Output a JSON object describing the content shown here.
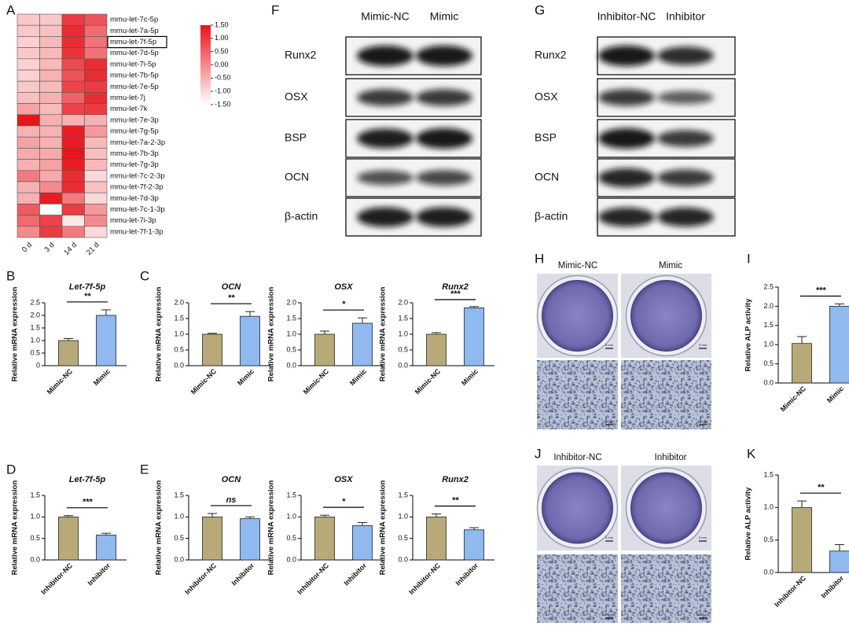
{
  "chart_data": [
    {
      "type": "heatmap",
      "panel": "A",
      "rows": [
        "mmu-let-7c-5p",
        "mmu-let-7a-5p",
        "mmu-let-7f-5p",
        "mmu-let-7d-5p",
        "mmu-let-7i-5p",
        "mmu-let-7b-5p",
        "mmu-let-7e-5p",
        "mmu-let-7j",
        "mmu-let-7k",
        "mmu-let-7e-3p",
        "mmu-let-7g-5p",
        "mmu-let-7a-2-3p",
        "mmu-let-7b-3p",
        "mmu-let-7g-3p",
        "mmu-let-7c-2-3p",
        "mmu-let-7f-2-3p",
        "mmu-let-7d-3p",
        "mmu-let-7c-1-3p",
        "mmu-let-7i-3p",
        "mmu-let-7f-1-3p"
      ],
      "columns": [
        "0 d",
        "3 d",
        "14 d",
        "21 d"
      ],
      "values": [
        [
          -0.8,
          -0.8,
          1.0,
          0.7
        ],
        [
          -0.8,
          -0.7,
          1.2,
          0.4
        ],
        [
          -0.9,
          -0.6,
          1.2,
          0.3
        ],
        [
          -0.8,
          -0.6,
          1.1,
          0.3
        ],
        [
          -0.9,
          -0.6,
          0.8,
          1.2
        ],
        [
          -0.9,
          -0.5,
          0.7,
          1.2
        ],
        [
          -0.8,
          -0.6,
          0.9,
          1.0
        ],
        [
          -0.7,
          -0.5,
          0.5,
          1.2
        ],
        [
          -0.3,
          -0.6,
          0.9,
          1.0
        ],
        [
          1.5,
          -0.5,
          -0.5,
          -0.5
        ],
        [
          -0.5,
          -0.5,
          1.4,
          -0.2
        ],
        [
          -0.3,
          -0.5,
          1.4,
          -0.6
        ],
        [
          -0.4,
          -0.4,
          1.5,
          -0.7
        ],
        [
          -0.5,
          -0.3,
          1.4,
          -0.6
        ],
        [
          0.2,
          -0.4,
          1.2,
          -1.0
        ],
        [
          -0.5,
          0.0,
          1.2,
          -0.7
        ],
        [
          -0.5,
          1.4,
          0.2,
          -1.0
        ],
        [
          0.6,
          -1.5,
          1.0,
          -0.2
        ],
        [
          0.4,
          0.9,
          -1.2,
          0.0
        ],
        [
          0.0,
          1.0,
          0.2,
          -1.0
        ]
      ],
      "boxed_rows": [
        2
      ],
      "colorbar": {
        "lim": [
          -1.5,
          1.5
        ],
        "colors": [
          "#ffffff",
          "#e8141c"
        ],
        "ticks": [
          {
            "value": 1.5,
            "label": "1.50"
          },
          {
            "value": 1,
            "label": "1.00"
          },
          {
            "value": 0.5,
            "label": "0.50"
          },
          {
            "value": 0,
            "label": "0.00"
          },
          {
            "value": -0.5,
            "label": "-0.50"
          },
          {
            "value": -1,
            "label": "-1.00"
          },
          {
            "value": -1.5,
            "label": "-1.50"
          }
        ]
      }
    },
    {
      "type": "bar",
      "panel": "B",
      "title": "Let-7f-5p",
      "y_label": "Relative mRNA expression",
      "categories": [
        "Mimic-NC",
        "Mimic"
      ],
      "values": [
        1.0,
        2.0
      ],
      "errors": [
        0.08,
        0.22
      ],
      "colors": [
        "#b8aa78",
        "#8fb9ef"
      ],
      "ylim": [
        0,
        2.5
      ],
      "yticks": [
        0,
        0.5,
        {
          "value": 1,
          "label": "1.0"
        },
        1.5,
        {
          "value": 2,
          "label": "2.0"
        },
        2.5
      ],
      "significance": "**"
    },
    {
      "type": "bar",
      "panel": "C",
      "title": "OCN",
      "y_label": "Relative mRNA expression",
      "categories": [
        "Mimic-NC",
        "Mimic"
      ],
      "values": [
        1.0,
        1.57
      ],
      "errors": [
        0.03,
        0.15
      ],
      "colors": [
        "#b8aa78",
        "#8fb9ef"
      ],
      "ylim": [
        0,
        2
      ],
      "yticks": [
        {
          "value": 0,
          "label": "0.0"
        },
        0.5,
        {
          "value": 1,
          "label": "1.0"
        },
        1.5,
        {
          "value": 2,
          "label": "2.0"
        }
      ],
      "significance": "**"
    },
    {
      "type": "bar",
      "title": "OSX",
      "y_label": "Relative mRNA expression",
      "categories": [
        "Mimic-NC",
        "Mimic"
      ],
      "values": [
        1.0,
        1.35
      ],
      "errors": [
        0.1,
        0.17
      ],
      "colors": [
        "#b8aa78",
        "#8fb9ef"
      ],
      "ylim": [
        0,
        2
      ],
      "yticks": [
        {
          "value": 0,
          "label": "0.0"
        },
        0.5,
        {
          "value": 1,
          "label": "1.0"
        },
        1.5,
        {
          "value": 2,
          "label": "2.0"
        }
      ],
      "significance": "*"
    },
    {
      "type": "bar",
      "title": "Runx2",
      "y_label": "Relative mRNA expression",
      "categories": [
        "Mimic-NC",
        "Mimic"
      ],
      "values": [
        1.0,
        1.84
      ],
      "errors": [
        0.05,
        0.04
      ],
      "colors": [
        "#b8aa78",
        "#8fb9ef"
      ],
      "ylim": [
        0,
        2
      ],
      "yticks": [
        {
          "value": 0,
          "label": "0.0"
        },
        0.5,
        {
          "value": 1,
          "label": "1.0"
        },
        1.5,
        {
          "value": 2,
          "label": "2.0"
        }
      ],
      "significance": "***"
    },
    {
      "type": "bar",
      "panel": "D",
      "title": "Let-7f-5p",
      "y_label": "Relative mRNA expression",
      "categories": [
        "Inhibitor-NC",
        "Inhibitor"
      ],
      "values": [
        1.0,
        0.58
      ],
      "errors": [
        0.03,
        0.04
      ],
      "colors": [
        "#b8aa78",
        "#8fb9ef"
      ],
      "ylim": [
        0,
        1.5
      ],
      "yticks": [
        {
          "value": 0,
          "label": "0.0"
        },
        0.5,
        {
          "value": 1,
          "label": "1.0"
        },
        1.5
      ],
      "significance": "***"
    },
    {
      "type": "bar",
      "panel": "E",
      "title": "OCN",
      "y_label": "Relative mRNA expression",
      "categories": [
        "Inhibitor-NC",
        "Inhibitor"
      ],
      "values": [
        1.0,
        0.96
      ],
      "errors": [
        0.08,
        0.04
      ],
      "colors": [
        "#b8aa78",
        "#8fb9ef"
      ],
      "ylim": [
        0,
        1.5
      ],
      "yticks": [
        {
          "value": 0,
          "label": "0.0"
        },
        0.5,
        {
          "value": 1,
          "label": "1.0"
        },
        1.5
      ],
      "significance": "ns"
    },
    {
      "type": "bar",
      "title": "OSX",
      "y_label": "Relative mRNA expression",
      "categories": [
        "Inhibitor-NC",
        "Inhibitor"
      ],
      "values": [
        1.0,
        0.8
      ],
      "errors": [
        0.04,
        0.07
      ],
      "colors": [
        "#b8aa78",
        "#8fb9ef"
      ],
      "ylim": [
        0,
        1.5
      ],
      "yticks": [
        {
          "value": 0,
          "label": "0.0"
        },
        0.5,
        {
          "value": 1,
          "label": "1.0"
        },
        1.5
      ],
      "significance": "*"
    },
    {
      "type": "bar",
      "title": "Runx2",
      "y_label": "Relative mRNA expression",
      "categories": [
        "Inhibitor-NC",
        "Inhibitor"
      ],
      "values": [
        1.0,
        0.7
      ],
      "errors": [
        0.07,
        0.05
      ],
      "colors": [
        "#b8aa78",
        "#8fb9ef"
      ],
      "ylim": [
        0,
        1.5
      ],
      "yticks": [
        {
          "value": 0,
          "label": "0.0"
        },
        0.5,
        {
          "value": 1,
          "label": "1.0"
        },
        1.5
      ],
      "significance": "**"
    },
    {
      "type": "bar",
      "panel": "I",
      "y_label": "Relative ALP activity",
      "categories": [
        "Mimic-NC",
        "Mimic"
      ],
      "values": [
        1.03,
        2.0
      ],
      "errors": [
        0.18,
        0.06
      ],
      "colors": [
        "#b8aa78",
        "#8fb9ef"
      ],
      "ylim": [
        0,
        2.5
      ],
      "yticks": [
        {
          "value": 0,
          "label": "0.0"
        },
        0.5,
        {
          "value": 1,
          "label": "1.0"
        },
        1.5,
        {
          "value": 2,
          "label": "2.0"
        },
        2.5
      ],
      "significance": "***"
    },
    {
      "type": "bar",
      "panel": "K",
      "y_label": "Relative ALP activity",
      "categories": [
        "Inhibitor-NC",
        "Inhibitor"
      ],
      "values": [
        1.0,
        0.33
      ],
      "errors": [
        0.1,
        0.1
      ],
      "colors": [
        "#b8aa78",
        "#8fb9ef"
      ],
      "ylim": [
        0,
        1.5
      ],
      "yticks": [
        {
          "value": 0,
          "label": "0.0"
        },
        0.5,
        {
          "value": 1,
          "label": "1.0"
        },
        1.5
      ],
      "significance": "**"
    }
  ],
  "blots": [
    {
      "panel": "F",
      "lanes": [
        "Mimic-NC",
        "Mimic"
      ],
      "proteins": [
        "Runx2",
        "OSX",
        "BSP",
        "OCN",
        "β-actin"
      ]
    },
    {
      "panel": "G",
      "lanes": [
        "Inhibitor-NC",
        "Inhibitor"
      ],
      "proteins": [
        "Runx2",
        "OSX",
        "BSP",
        "OCN",
        "β-actin"
      ]
    }
  ],
  "staining": [
    {
      "panel": "H",
      "groups": [
        "Mimic-NC",
        "Mimic"
      ],
      "well_scale": [
        "5 mm",
        "5 mm"
      ],
      "micro_scale": [
        "200 μm",
        "200 μm"
      ]
    },
    {
      "panel": "J",
      "groups": [
        "Inhibitor-NC",
        "Inhibitor"
      ],
      "well_scale": [
        "5 mm",
        "5 mm"
      ],
      "micro_scale": [
        "200 μm",
        "200 μm"
      ]
    }
  ]
}
